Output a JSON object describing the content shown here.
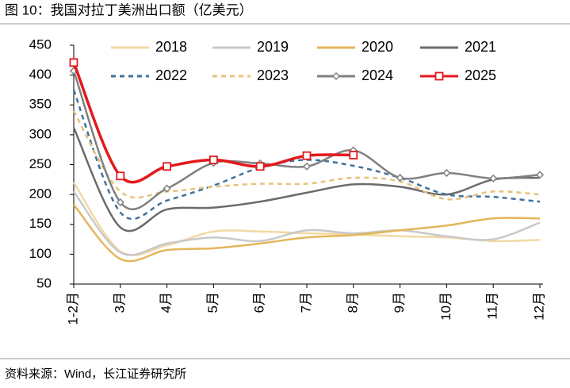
{
  "chart_data": {
    "type": "line",
    "title": "图 10：我国对拉丁美洲出口额（亿美元）",
    "source": "资料来源：Wind，长江证券研究所",
    "categories": [
      "1-2月",
      "3月",
      "4月",
      "5月",
      "6月",
      "7月",
      "8月",
      "9月",
      "10月",
      "11月",
      "12月"
    ],
    "ylim": [
      50,
      450
    ],
    "yticks": [
      50,
      100,
      150,
      200,
      250,
      300,
      350,
      400,
      450
    ],
    "grid": false,
    "series": [
      {
        "name": "2018",
        "color": "#f1d9a2",
        "dash": false,
        "marker": null,
        "values": [
          220,
          105,
          115,
          138,
          138,
          135,
          133,
          130,
          128,
          122,
          124
        ]
      },
      {
        "name": "2019",
        "color": "#c9c9c9",
        "dash": false,
        "marker": null,
        "values": [
          205,
          103,
          118,
          128,
          122,
          140,
          135,
          140,
          130,
          125,
          153
        ]
      },
      {
        "name": "2020",
        "color": "#e4b65a",
        "dash": false,
        "marker": null,
        "values": [
          183,
          92,
          107,
          110,
          118,
          128,
          132,
          140,
          148,
          160,
          160
        ]
      },
      {
        "name": "2021",
        "color": "#6b6b6b",
        "dash": false,
        "marker": null,
        "values": [
          312,
          145,
          175,
          178,
          188,
          203,
          217,
          213,
          200,
          225,
          228
        ]
      },
      {
        "name": "2022",
        "color": "#41719c",
        "dash": true,
        "marker": null,
        "values": [
          375,
          170,
          190,
          215,
          245,
          258,
          248,
          228,
          200,
          196,
          188
        ]
      },
      {
        "name": "2023",
        "color": "#e6c27a",
        "dash": true,
        "marker": null,
        "values": [
          340,
          205,
          205,
          213,
          218,
          218,
          228,
          222,
          192,
          205,
          200
        ]
      },
      {
        "name": "2024",
        "color": "#808080",
        "dash": false,
        "marker": "diamond",
        "values": [
          407,
          187,
          210,
          253,
          252,
          247,
          274,
          228,
          236,
          227,
          233
        ]
      },
      {
        "name": "2025",
        "color": "#e3191c",
        "dash": false,
        "marker": "square",
        "values": [
          421,
          231,
          247,
          258,
          247,
          265,
          266,
          null,
          null,
          null,
          null
        ]
      }
    ]
  }
}
